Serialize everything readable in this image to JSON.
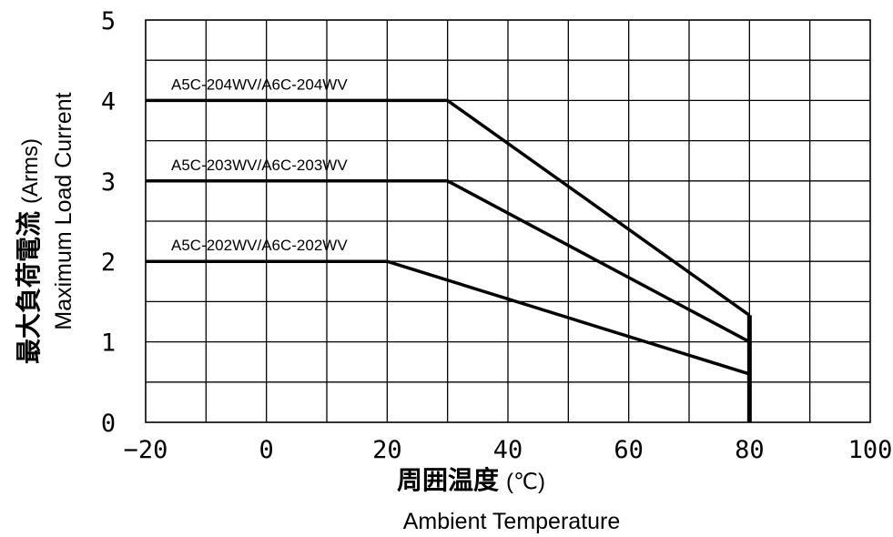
{
  "chart_data": {
    "type": "line",
    "title": "",
    "xlabel_ja": "周囲温度",
    "xlabel_unit": "(℃)",
    "xlabel_en": "Ambient Temperature",
    "ylabel_ja": "最大負荷電流",
    "ylabel_unit": "(Arms)",
    "ylabel_en": "Maximum Load Current",
    "xlim": [
      -20,
      100
    ],
    "ylim": [
      0,
      5
    ],
    "xticks": [
      "−20",
      "0",
      "20",
      "40",
      "60",
      "80",
      "100"
    ],
    "xtick_values": [
      -20,
      0,
      20,
      40,
      60,
      80,
      100
    ],
    "yticks": [
      "0",
      "1",
      "2",
      "3",
      "4",
      "5"
    ],
    "ytick_values": [
      0,
      1,
      2,
      3,
      4,
      5
    ],
    "grid": true,
    "line_color": "#000000",
    "series": [
      {
        "name": "A5C-204WV/A6C-204WV",
        "x": [
          -20,
          30,
          80
        ],
        "y": [
          4,
          4,
          1.33
        ]
      },
      {
        "name": "A5C-203WV/A6C-203WV",
        "x": [
          -20,
          30,
          80
        ],
        "y": [
          3,
          3,
          1.0
        ]
      },
      {
        "name": "A5C-202WV/A6C-202WV",
        "x": [
          -20,
          20,
          80
        ],
        "y": [
          2,
          2,
          0.6
        ]
      }
    ],
    "cutoff": {
      "x": 80,
      "y": [
        0,
        1.33
      ]
    }
  }
}
